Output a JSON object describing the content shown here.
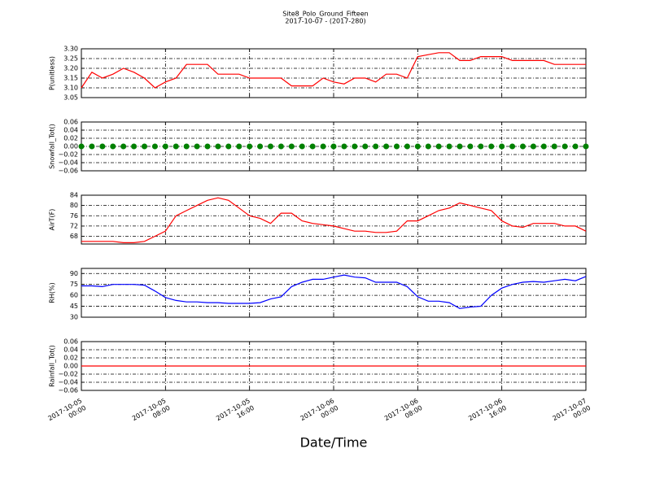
{
  "title": "Site8_Polo_Ground_Fifteen",
  "subtitle": "2017-10-07 - (2017-280)",
  "xlabel": "Date/Time",
  "x": [
    "2017-10-05 00:00",
    "2017-10-05 01:00",
    "2017-10-05 02:00",
    "2017-10-05 03:00",
    "2017-10-05 04:00",
    "2017-10-05 05:00",
    "2017-10-05 06:00",
    "2017-10-05 07:00",
    "2017-10-05 08:00",
    "2017-10-05 09:00",
    "2017-10-05 10:00",
    "2017-10-05 11:00",
    "2017-10-05 12:00",
    "2017-10-05 13:00",
    "2017-10-05 14:00",
    "2017-10-05 15:00",
    "2017-10-05 16:00",
    "2017-10-05 17:00",
    "2017-10-05 18:00",
    "2017-10-05 19:00",
    "2017-10-05 20:00",
    "2017-10-05 21:00",
    "2017-10-05 22:00",
    "2017-10-05 23:00",
    "2017-10-06 00:00",
    "2017-10-06 01:00",
    "2017-10-06 02:00",
    "2017-10-06 03:00",
    "2017-10-06 04:00",
    "2017-10-06 05:00",
    "2017-10-06 06:00",
    "2017-10-06 07:00",
    "2017-10-06 08:00",
    "2017-10-06 09:00",
    "2017-10-06 10:00",
    "2017-10-06 11:00",
    "2017-10-06 12:00",
    "2017-10-06 13:00",
    "2017-10-06 14:00",
    "2017-10-06 15:00",
    "2017-10-06 16:00",
    "2017-10-06 17:00",
    "2017-10-06 18:00",
    "2017-10-06 19:00",
    "2017-10-06 20:00",
    "2017-10-06 21:00",
    "2017-10-06 22:00",
    "2017-10-06 23:00",
    "2017-10-07 00:00"
  ],
  "xlim": [
    "2017-10-05 00:00",
    "2017-10-07 00:00"
  ],
  "xticks": [
    {
      "value": "2017-10-05 00:00",
      "label": [
        "2017-10-05",
        "00:00"
      ]
    },
    {
      "value": "2017-10-05 08:00",
      "label": [
        "2017-10-05",
        "08:00"
      ]
    },
    {
      "value": "2017-10-05 16:00",
      "label": [
        "2017-10-05",
        "16:00"
      ]
    },
    {
      "value": "2017-10-06 00:00",
      "label": [
        "2017-10-06",
        "00:00"
      ]
    },
    {
      "value": "2017-10-06 08:00",
      "label": [
        "2017-10-06",
        "08:00"
      ]
    },
    {
      "value": "2017-10-06 16:00",
      "label": [
        "2017-10-06",
        "16:00"
      ]
    },
    {
      "value": "2017-10-07 00:00",
      "label": [
        "2017-10-07",
        "00:00"
      ]
    }
  ],
  "chart_data": [
    {
      "type": "line",
      "ylabel": "P(unitless)",
      "color": "#ff0000",
      "grid": true,
      "ylim": [
        3.05,
        3.3
      ],
      "yticks": [
        {
          "value": 3.05,
          "label": "3.05"
        },
        {
          "value": 3.1,
          "label": "3.10"
        },
        {
          "value": 3.15,
          "label": "3.15"
        },
        {
          "value": 3.2,
          "label": "3.20"
        },
        {
          "value": 3.25,
          "label": "3.25"
        },
        {
          "value": 3.3,
          "label": "3.30"
        }
      ],
      "values": [
        3.1,
        3.18,
        3.15,
        3.17,
        3.2,
        3.18,
        3.15,
        3.1,
        3.13,
        3.15,
        3.22,
        3.22,
        3.22,
        3.17,
        3.17,
        3.17,
        3.15,
        3.15,
        3.15,
        3.15,
        3.11,
        3.11,
        3.11,
        3.15,
        3.13,
        3.12,
        3.15,
        3.15,
        3.13,
        3.17,
        3.17,
        3.15,
        3.26,
        3.27,
        3.28,
        3.28,
        3.24,
        3.24,
        3.26,
        3.26,
        3.26,
        3.24,
        3.24,
        3.24,
        3.24,
        3.22,
        3.22,
        3.22,
        3.22
      ]
    },
    {
      "type": "scatter",
      "ylabel": "Snowfall_Tot()",
      "color": "#008000",
      "grid": true,
      "ylim": [
        -0.06,
        0.06
      ],
      "yticks": [
        {
          "value": -0.06,
          "label": "−0.06"
        },
        {
          "value": -0.04,
          "label": "−0.04"
        },
        {
          "value": -0.02,
          "label": "−0.02"
        },
        {
          "value": 0,
          "label": "0.00"
        },
        {
          "value": 0.02,
          "label": "0.02"
        },
        {
          "value": 0.04,
          "label": "0.04"
        },
        {
          "value": 0.06,
          "label": "0.06"
        }
      ],
      "values": [
        0,
        0,
        0,
        0,
        0,
        0,
        0,
        0,
        0,
        0,
        0,
        0,
        0,
        0,
        0,
        0,
        0,
        0,
        0,
        0,
        0,
        0,
        0,
        0,
        0,
        0,
        0,
        0,
        0,
        0,
        0,
        0,
        0,
        0,
        0,
        0,
        0,
        0,
        0,
        0,
        0,
        0,
        0,
        0,
        0,
        0,
        0,
        0,
        0
      ]
    },
    {
      "type": "line",
      "ylabel": "AirT(F)",
      "color": "#ff0000",
      "grid": true,
      "ylim": [
        65,
        84
      ],
      "yticks": [
        68,
        72,
        76,
        80,
        84
      ],
      "values": [
        66,
        66,
        66,
        66,
        65.5,
        65.5,
        66,
        68,
        70,
        76,
        78,
        80,
        82,
        83,
        82,
        79,
        76,
        75,
        73,
        77,
        77,
        74,
        73,
        72.5,
        72,
        71,
        70,
        70,
        69.5,
        69.5,
        70,
        74,
        74,
        76,
        78,
        79,
        81,
        80,
        79,
        78,
        74,
        72,
        71.5,
        73,
        73,
        73,
        72,
        72,
        70
      ]
    },
    {
      "type": "line",
      "ylabel": "RH(%)",
      "color": "#0000ff",
      "grid": true,
      "ylim": [
        30,
        97
      ],
      "yticks": [
        30,
        45,
        60,
        75,
        90
      ],
      "values": [
        73,
        73,
        72,
        75,
        75,
        75,
        74,
        66,
        57,
        53,
        51,
        51,
        50,
        50,
        49,
        49,
        49,
        50,
        55,
        58,
        72,
        78,
        82,
        82,
        85,
        88,
        85,
        84,
        78,
        78,
        78,
        72,
        58,
        52,
        52,
        50,
        42,
        44,
        45,
        60,
        70,
        75,
        78,
        79,
        78,
        80,
        82,
        80,
        86
      ]
    },
    {
      "type": "line",
      "ylabel": "Rainfall_Tot()",
      "color": "#ff0000",
      "grid": true,
      "ylim": [
        -0.06,
        0.06
      ],
      "yticks": [
        {
          "value": -0.06,
          "label": "−0.06"
        },
        {
          "value": -0.04,
          "label": "−0.04"
        },
        {
          "value": -0.02,
          "label": "−0.02"
        },
        {
          "value": 0,
          "label": "0.00"
        },
        {
          "value": 0.02,
          "label": "0.02"
        },
        {
          "value": 0.04,
          "label": "0.04"
        },
        {
          "value": 0.06,
          "label": "0.06"
        }
      ],
      "values": [
        0,
        0,
        0,
        0,
        0,
        0,
        0,
        0,
        0,
        0,
        0,
        0,
        0,
        0,
        0,
        0,
        0,
        0,
        0,
        0,
        0,
        0,
        0,
        0,
        0,
        0,
        0,
        0,
        0,
        0,
        0,
        0,
        0,
        0,
        0,
        0,
        0,
        0,
        0,
        0,
        0,
        0,
        0,
        0,
        0,
        0,
        0,
        0,
        0
      ]
    }
  ]
}
